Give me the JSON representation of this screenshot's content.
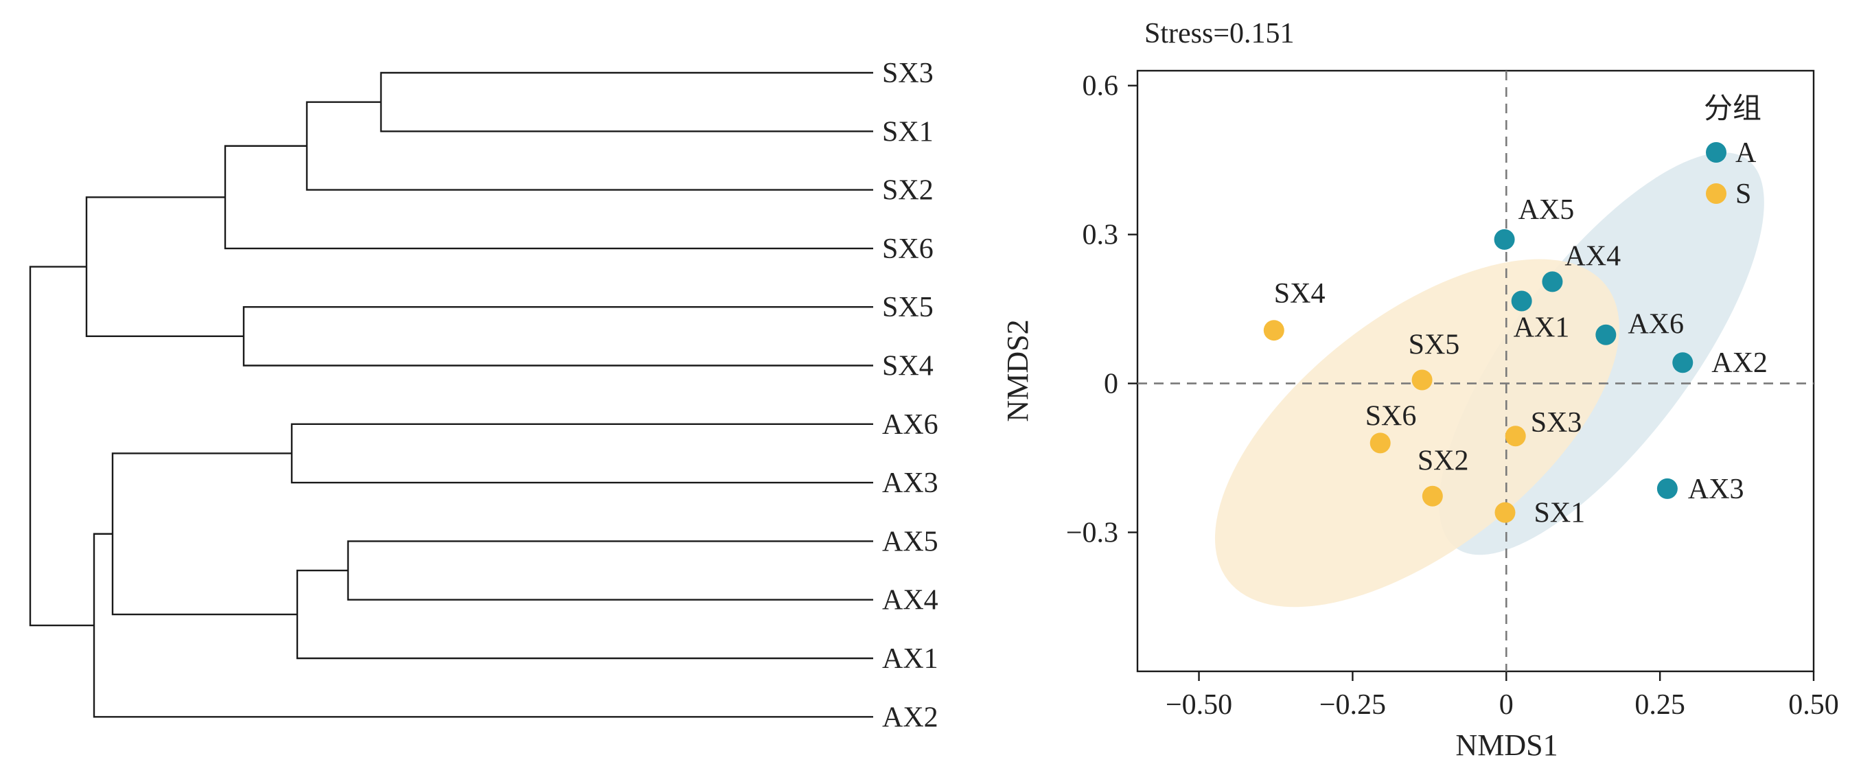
{
  "dendrogram": {
    "leaves": [
      "SX3",
      "SX1",
      "SX2",
      "SX6",
      "SX5",
      "SX4",
      "AX6",
      "AX3",
      "AX5",
      "AX4",
      "AX1",
      "AX2"
    ]
  },
  "nmds": {
    "stress_label": "Stress=0.151",
    "legend_title": "分组",
    "legend_items": [
      {
        "label": "A",
        "color": "#1a8fa3"
      },
      {
        "label": "S",
        "color": "#f6bc3b"
      }
    ],
    "ellipse_colors": {
      "A": "#dce8ee",
      "S": "#fbecd0"
    }
  },
  "chart_data": {
    "type": "scatter",
    "title": "",
    "xlabel": "NMDS1",
    "ylabel": "NMDS2",
    "xlim": [
      -0.6,
      0.5
    ],
    "ylim": [
      -0.58,
      0.63
    ],
    "xticks": [
      -0.5,
      -0.25,
      0,
      0.25,
      0.5
    ],
    "xtick_labels": [
      "−0.50",
      "−0.25",
      "0",
      "0.25",
      "0.50"
    ],
    "yticks": [
      -0.3,
      0,
      0.3,
      0.6
    ],
    "ytick_labels": [
      "−0.3",
      "0",
      "0.3",
      "0.6"
    ],
    "reference_lines": {
      "x": 0,
      "y": 0
    },
    "stress": 0.151,
    "series": [
      {
        "name": "A",
        "color": "#1a8fa3",
        "points": [
          {
            "label": "AX5",
            "x": -0.003,
            "y": 0.29
          },
          {
            "label": "AX4",
            "x": 0.075,
            "y": 0.205
          },
          {
            "label": "AX1",
            "x": 0.025,
            "y": 0.166
          },
          {
            "label": "AX6",
            "x": 0.162,
            "y": 0.098
          },
          {
            "label": "AX2",
            "x": 0.287,
            "y": 0.042
          },
          {
            "label": "AX3",
            "x": 0.262,
            "y": -0.212
          }
        ]
      },
      {
        "name": "S",
        "color": "#f6bc3b",
        "points": [
          {
            "label": "SX4",
            "x": -0.378,
            "y": 0.107
          },
          {
            "label": "SX5",
            "x": -0.137,
            "y": 0.007
          },
          {
            "label": "SX6",
            "x": -0.205,
            "y": -0.12
          },
          {
            "label": "SX3",
            "x": 0.015,
            "y": -0.106
          },
          {
            "label": "SX2",
            "x": -0.12,
            "y": -0.227
          },
          {
            "label": "SX1",
            "x": -0.002,
            "y": -0.26
          }
        ]
      }
    ]
  }
}
